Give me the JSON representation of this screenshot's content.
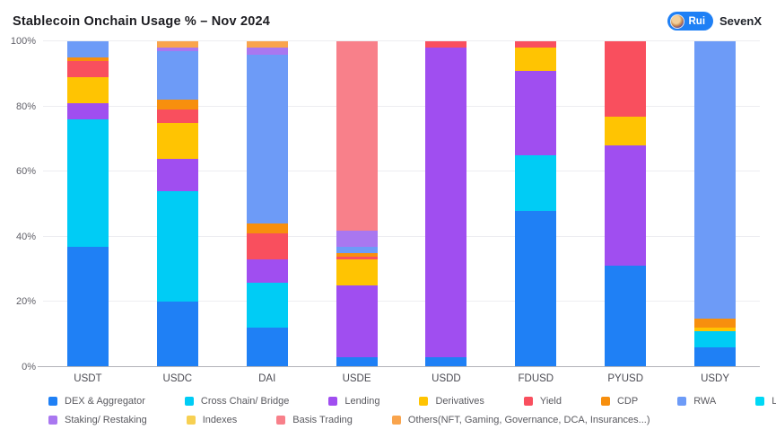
{
  "header": {
    "title": "Stablecoin Onchain Usage % – Nov 2024",
    "badge_label": "Rui",
    "brand": "SevenX"
  },
  "legend": {
    "split_index": 8
  },
  "chart_data": {
    "type": "bar",
    "stacked": true,
    "unit": "%",
    "title": "Stablecoin Onchain Usage % – Nov 2024",
    "xlabel": "",
    "ylabel": "",
    "ylim": [
      0,
      100
    ],
    "yticks": [
      "0%",
      "20%",
      "40%",
      "60%",
      "80%",
      "100%"
    ],
    "grid": true,
    "legend_position": "bottom",
    "categories": [
      "USDT",
      "USDC",
      "DAI",
      "USDE",
      "USDD",
      "FDUSD",
      "PYUSD",
      "USDY"
    ],
    "series": [
      {
        "name": "DEX & Aggregator",
        "color": "#1f80f5",
        "values": [
          37,
          20,
          12,
          3,
          3,
          48,
          31,
          6
        ]
      },
      {
        "name": "Cross Chain/ Bridge",
        "color": "#00ccf5",
        "values": [
          39,
          34,
          14,
          0,
          0,
          17,
          0,
          5
        ]
      },
      {
        "name": "Lending",
        "color": "#a04ef0",
        "values": [
          5,
          10,
          7,
          22,
          95,
          26,
          37,
          0
        ]
      },
      {
        "name": "Derivatives",
        "color": "#ffc402",
        "values": [
          8,
          11,
          0,
          8,
          0,
          7,
          9,
          1
        ]
      },
      {
        "name": "Yield",
        "color": "#f94f5e",
        "values": [
          5,
          4,
          8,
          1,
          2,
          2,
          23,
          0
        ]
      },
      {
        "name": "CDP",
        "color": "#f78f0e",
        "values": [
          1,
          3,
          3,
          1,
          0,
          0,
          0,
          3
        ]
      },
      {
        "name": "RWA",
        "color": "#6d9bf7",
        "values": [
          5,
          15,
          52,
          2,
          0,
          0,
          0,
          85
        ]
      },
      {
        "name": "Launchpad",
        "color": "#00d8f5",
        "values": [
          0,
          0,
          0,
          0,
          0,
          0,
          0,
          0
        ]
      },
      {
        "name": "Staking/ Restaking",
        "color": "#a977f0",
        "values": [
          0,
          1,
          2,
          5,
          0,
          0,
          0,
          0
        ]
      },
      {
        "name": "Indexes",
        "color": "#f7d052",
        "values": [
          0,
          0,
          0,
          0,
          0,
          0,
          0,
          0
        ]
      },
      {
        "name": "Basis Trading",
        "color": "#f8808a",
        "values": [
          0,
          0,
          0,
          58,
          0,
          0,
          0,
          0
        ]
      },
      {
        "name": "Others(NFT, Gaming, Governance, DCA, Insurances...)",
        "color": "#f9a44d",
        "values": [
          0,
          2,
          2,
          0,
          0,
          0,
          0,
          0
        ]
      }
    ]
  }
}
